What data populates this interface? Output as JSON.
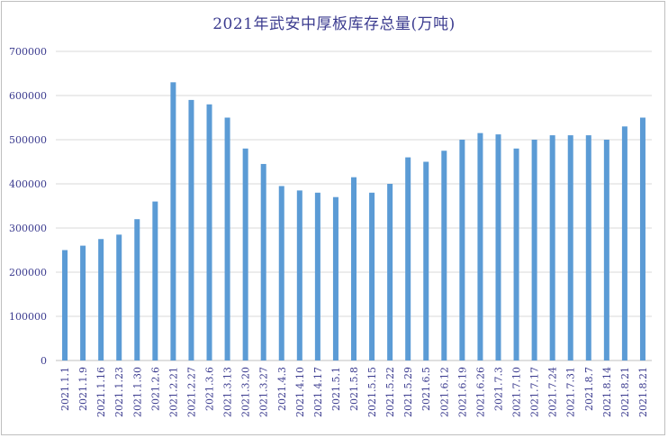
{
  "chart_data": {
    "type": "bar",
    "title": "2021年武安中厚板库存总量(万吨)",
    "xlabel": "",
    "ylabel": "",
    "ylim": [
      0,
      700000
    ],
    "yticks": [
      "0",
      "100000",
      "200000",
      "300000",
      "400000",
      "500000",
      "600000",
      "700000"
    ],
    "grid": true,
    "legend": "none",
    "bar_color": "#5b9bd5",
    "categories": [
      "2021.1.1",
      "2021.1.9",
      "2021.1.16",
      "2021.1.23",
      "2021.1.30",
      "2021.2.6",
      "2021.2.21",
      "2021.2.27",
      "2021.3.6",
      "2021.3.13",
      "2021.3.20",
      "2021.3.27",
      "2021.4.3",
      "2021.4.10",
      "2021.4.17",
      "2021.5.1",
      "2021.5.8",
      "2021.5.15",
      "2021.5.22",
      "2021.5.29",
      "2021.6.5",
      "2021.6.12",
      "2021.6.19",
      "2021.6.26",
      "2021.7.3",
      "2021.7.10",
      "2021.7.17",
      "2021.7.24",
      "2021.7.31",
      "2021.8.7",
      "2021.8.14",
      "2021.8.21",
      "2021.8.21"
    ],
    "values": [
      250000,
      260000,
      275000,
      285000,
      320000,
      360000,
      630000,
      590000,
      580000,
      550000,
      480000,
      445000,
      395000,
      385000,
      380000,
      370000,
      415000,
      380000,
      400000,
      460000,
      450000,
      475000,
      500000,
      515000,
      512000,
      480000,
      500000,
      510000,
      510000,
      510000,
      500000,
      530000,
      550000
    ]
  }
}
